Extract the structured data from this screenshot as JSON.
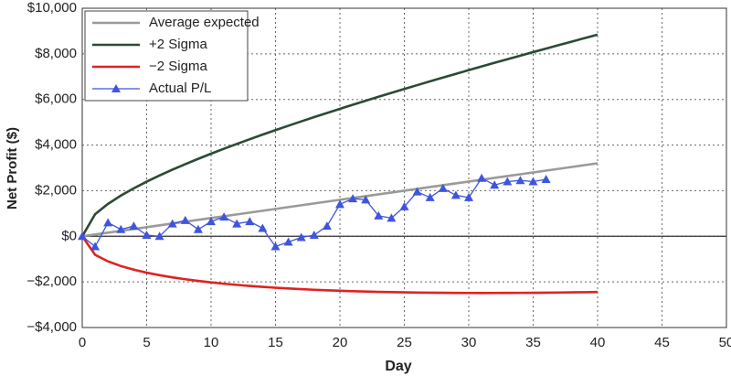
{
  "chart_data": {
    "type": "line",
    "x_label": "Day",
    "y_label": "Net Profit ($)",
    "x": [
      0,
      1,
      2,
      3,
      4,
      5,
      6,
      7,
      8,
      9,
      10,
      11,
      12,
      13,
      14,
      15,
      16,
      17,
      18,
      19,
      20,
      21,
      22,
      23,
      24,
      25,
      26,
      27,
      28,
      29,
      30,
      31,
      32,
      33,
      34,
      35,
      36,
      37,
      38,
      39,
      40
    ],
    "series": [
      {
        "name": "Average expected",
        "color": "#9a9a9a",
        "values": [
          0,
          80,
          160,
          240,
          320,
          400,
          480,
          560,
          640,
          720,
          800,
          880,
          960,
          1040,
          1120,
          1200,
          1280,
          1360,
          1440,
          1520,
          1600,
          1680,
          1760,
          1840,
          1920,
          2000,
          2080,
          2160,
          2240,
          2320,
          2400,
          2480,
          2560,
          2640,
          2720,
          2800,
          2880,
          2960,
          3040,
          3120,
          3200
        ]
      },
      {
        "name": "+2 Sigma",
        "color": "#2b4a33",
        "values": [
          0,
          972,
          1421,
          1785,
          2104,
          2395,
          2665,
          2920,
          3163,
          3396,
          3621,
          3839,
          4050,
          4256,
          4458,
          4655,
          4848,
          5038,
          5225,
          5408,
          5589,
          5768,
          5944,
          6118,
          6290,
          6460,
          6628,
          6795,
          6960,
          7124,
          7286,
          7447,
          7606,
          7765,
          7921,
          8077,
          8232,
          8386,
          8538,
          8691,
          8842
        ]
      },
      {
        "name": "−2 Sigma",
        "color": "#e02222",
        "values": [
          0,
          -812,
          -1101,
          -1305,
          -1464,
          -1595,
          -1705,
          -1800,
          -1883,
          -1956,
          -2021,
          -2079,
          -2130,
          -2176,
          -2218,
          -2255,
          -2288,
          -2318,
          -2345,
          -2368,
          -2389,
          -2408,
          -2424,
          -2438,
          -2450,
          -2460,
          -2468,
          -2475,
          -2480,
          -2484,
          -2486,
          -2487,
          -2486,
          -2485,
          -2481,
          -2477,
          -2472,
          -2466,
          -2458,
          -2451,
          -2442
        ]
      },
      {
        "name": "Actual P/L",
        "color": "#3f55dd",
        "marker": "triangle",
        "values": [
          0,
          -450,
          600,
          300,
          450,
          50,
          0,
          550,
          700,
          300,
          650,
          850,
          550,
          650,
          350,
          -450,
          -250,
          -50,
          50,
          450,
          1400,
          1650,
          1600,
          900,
          800,
          1300,
          1950,
          1700,
          2100,
          1800,
          1700,
          2550,
          2250,
          2400,
          2450,
          2400,
          2500,
          null,
          null,
          null,
          null
        ]
      }
    ],
    "xlim": [
      0,
      50
    ],
    "xticks": [
      0,
      5,
      10,
      15,
      20,
      25,
      30,
      35,
      40,
      45,
      50
    ],
    "ylim": [
      -4000,
      10000
    ],
    "yticks": [
      {
        "value": -4000,
        "label": "−$4,000"
      },
      {
        "value": -2000,
        "label": "−$2,000"
      },
      {
        "value": 0,
        "label": "$0"
      },
      {
        "value": 2000,
        "label": "$2,000"
      },
      {
        "value": 4000,
        "label": "$4,000"
      },
      {
        "value": 6000,
        "label": "$6,000"
      },
      {
        "value": 8000,
        "label": "$8,000"
      },
      {
        "value": 10000,
        "label": "$10,000"
      }
    ],
    "grid": true,
    "legend": "upper left"
  }
}
